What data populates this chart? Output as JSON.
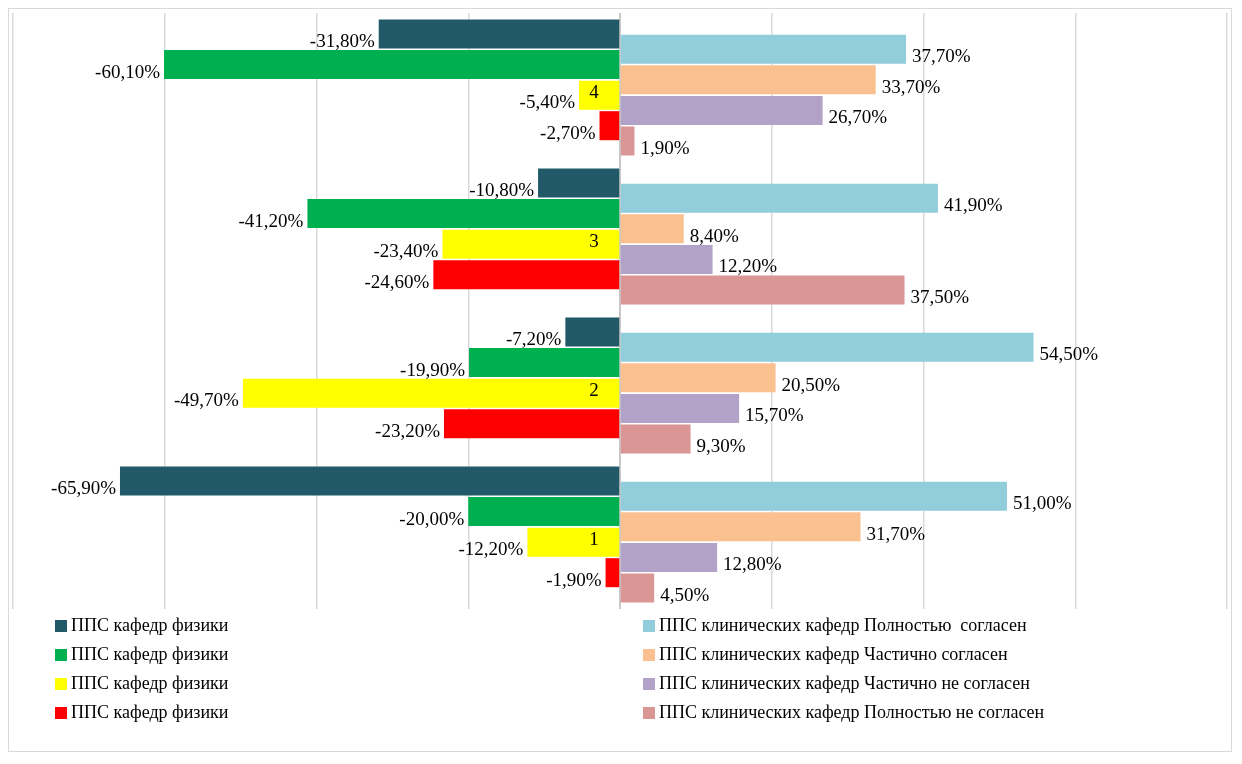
{
  "chart_data": {
    "type": "bar",
    "orientation": "horizontal",
    "categories": [
      "4",
      "3",
      "2",
      "1"
    ],
    "xlim": [
      -80,
      80
    ],
    "xticks": [
      {
        "value": -80,
        "label": null
      },
      {
        "value": -60,
        "label": null
      },
      {
        "value": -40,
        "label": null
      },
      {
        "value": -20,
        "label": null
      },
      {
        "value": 0,
        "label": null
      },
      {
        "value": 20,
        "label": null
      },
      {
        "value": 40,
        "label": null
      },
      {
        "value": 60,
        "label": null
      },
      {
        "value": 80,
        "label": null
      }
    ],
    "grid": "x",
    "legend": "bottom",
    "tick_labels": "y",
    "series": [
      {
        "name": "ППС кафедр физики",
        "color": "#215968",
        "values": [
          -31.8,
          -10.8,
          -7.2,
          -65.9
        ],
        "value_labels": [
          "-31,80%",
          "-10,80%",
          "-7,20%",
          "-65,90%"
        ]
      },
      {
        "name": "ППС клинических кафедр Полностью  согласен",
        "color": "#92cddc",
        "values": [
          37.7,
          41.9,
          54.5,
          51.0
        ],
        "value_labels": [
          "37,70%",
          "41,90%",
          "54,50%",
          "51,00%"
        ]
      },
      {
        "name": "ППС кафедр физики",
        "color": "#00b050",
        "values": [
          -60.1,
          -41.2,
          -19.9,
          -20.0
        ],
        "value_labels": [
          "-60,10%",
          "-41,20%",
          "-19,90%",
          "-20,00%"
        ]
      },
      {
        "name": "ППС клинических кафедр Частично согласен",
        "color": "#fac090",
        "values": [
          33.7,
          8.4,
          20.5,
          31.7
        ],
        "value_labels": [
          "33,70%",
          "8,40%",
          "20,50%",
          "31,70%"
        ]
      },
      {
        "name": "ППС кафедр физики",
        "color": "#ffff00",
        "values": [
          -5.4,
          -23.4,
          -49.7,
          -12.2
        ],
        "value_labels": [
          "-5,40%",
          "-23,40%",
          "-49,70%",
          "-12,20%"
        ]
      },
      {
        "name": "ППС клинических кафедр Частично не согласен",
        "color": "#b3a2c7",
        "values": [
          26.7,
          12.2,
          15.7,
          12.8
        ],
        "value_labels": [
          "26,70%",
          "12,20%",
          "15,70%",
          "12,80%"
        ]
      },
      {
        "name": "ППС кафедр физики",
        "color": "#ff0000",
        "values": [
          -2.7,
          -24.6,
          -23.2,
          -1.9
        ],
        "value_labels": [
          "-2,70%",
          "-24,60%",
          "-23,20%",
          "-1,90%"
        ]
      },
      {
        "name": "ППС клинических кафедр Полностью не согласен",
        "color": "#d99694",
        "values": [
          1.9,
          37.5,
          9.3,
          4.5
        ],
        "value_labels": [
          "1,90%",
          "37,50%",
          "9,30%",
          "4,50%"
        ]
      }
    ]
  }
}
